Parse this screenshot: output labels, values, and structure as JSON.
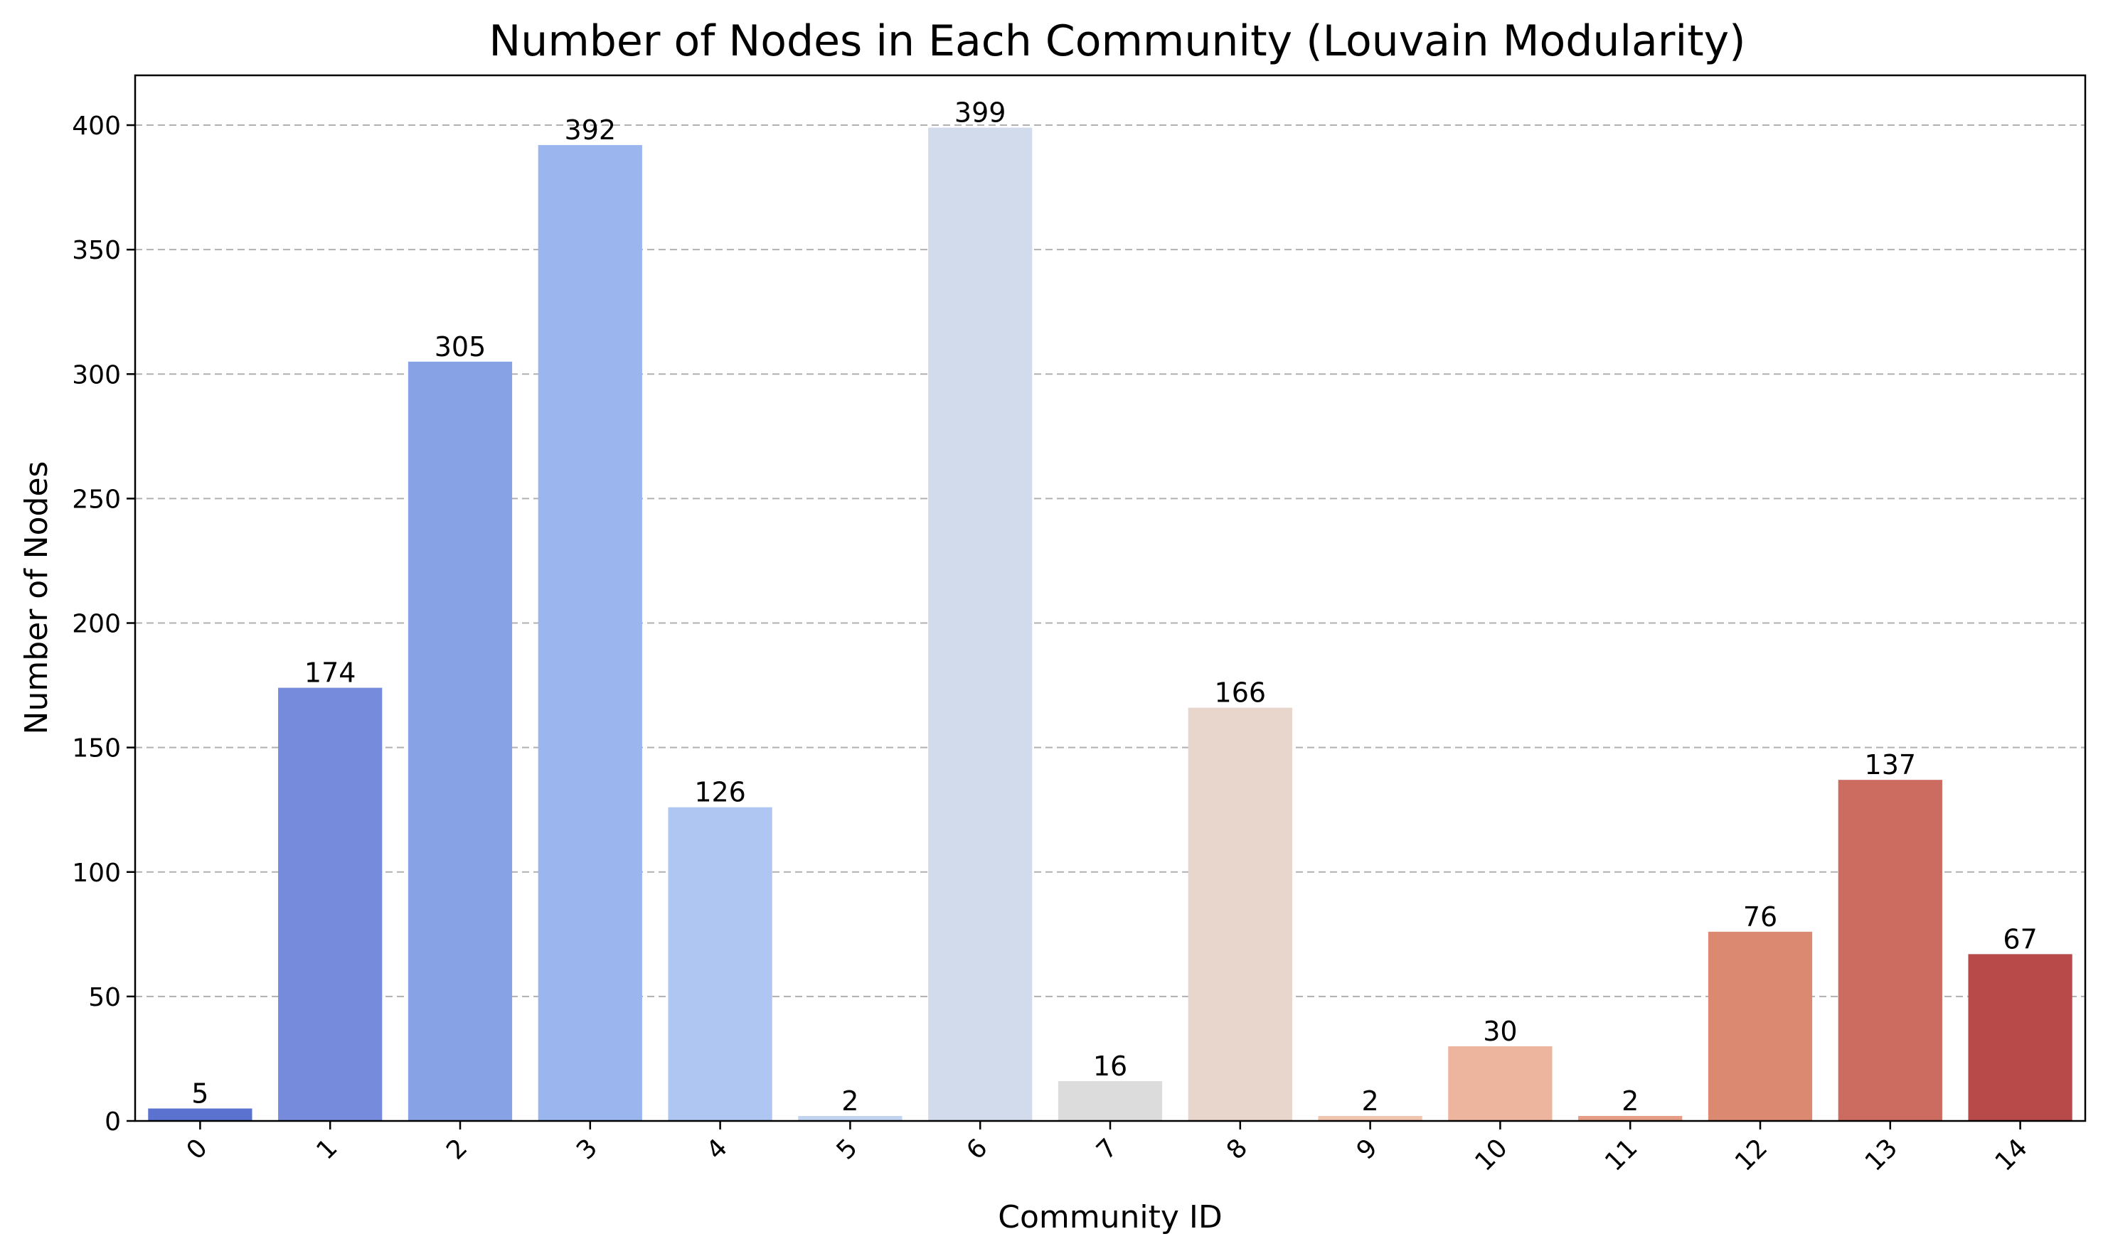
{
  "chart_data": {
    "type": "bar",
    "title": "Number of Nodes in Each Community (Louvain Modularity)",
    "xlabel": "Community ID",
    "ylabel": "Number of Nodes",
    "categories": [
      "0",
      "1",
      "2",
      "3",
      "4",
      "5",
      "6",
      "7",
      "8",
      "9",
      "10",
      "11",
      "12",
      "13",
      "14"
    ],
    "values": [
      5,
      174,
      305,
      392,
      126,
      2,
      399,
      16,
      166,
      2,
      30,
      2,
      76,
      137,
      67
    ],
    "colors": [
      "#5b72d0",
      "#768bdb",
      "#88a2e6",
      "#9bb6ef",
      "#afc6f2",
      "#c3d4f1",
      "#d1dbeb",
      "#dcdcdc",
      "#e8d5cb",
      "#f1c6b1",
      "#edb49e",
      "#e59d85",
      "#db8970",
      "#cc6b60",
      "#b94a4a"
    ],
    "ylim": [
      0,
      420
    ],
    "yticks": [
      0,
      50,
      100,
      150,
      200,
      250,
      300,
      350,
      400
    ],
    "grid": "y-dashed"
  }
}
